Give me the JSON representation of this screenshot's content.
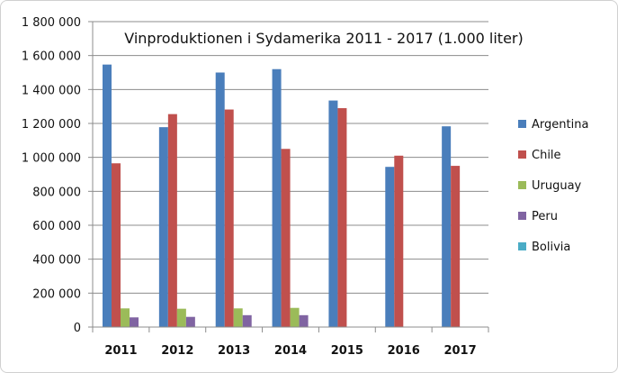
{
  "chart_data": {
    "type": "bar",
    "title": "Vinproduktionen i Sydamerika 2011 - 2017 (1.000 liter)",
    "xlabel": "",
    "ylabel": "",
    "ylim": [
      0,
      1800000
    ],
    "yticks": [
      0,
      200000,
      400000,
      600000,
      800000,
      1000000,
      1200000,
      1400000,
      1600000,
      1800000
    ],
    "ytick_labels": [
      "0",
      "200 000",
      "400 000",
      "600 000",
      "800 000",
      "1 000 000",
      "1 200 000",
      "1 400 000",
      "1 600 000",
      "1 800 000"
    ],
    "grid": true,
    "legend_position": "right",
    "categories": [
      "2011",
      "2012",
      "2013",
      "2014",
      "2015",
      "2016",
      "2017"
    ],
    "series": [
      {
        "name": "Argentina",
        "color": "#4a7ebb",
        "values": [
          1547000,
          1178000,
          1500000,
          1520000,
          1335000,
          944000,
          1183000
        ]
      },
      {
        "name": "Chile",
        "color": "#c0504d",
        "values": [
          965000,
          1255000,
          1282000,
          1050000,
          1290000,
          1010000,
          950000
        ]
      },
      {
        "name": "Uruguay",
        "color": "#9bbb59",
        "values": [
          110000,
          108000,
          110000,
          113000,
          0,
          0,
          0
        ]
      },
      {
        "name": "Peru",
        "color": "#8064a2",
        "values": [
          57000,
          60000,
          70000,
          70000,
          0,
          0,
          0
        ]
      },
      {
        "name": "Bolivia",
        "color": "#4bacc6",
        "values": [
          0,
          0,
          0,
          0,
          0,
          0,
          0
        ]
      }
    ]
  }
}
